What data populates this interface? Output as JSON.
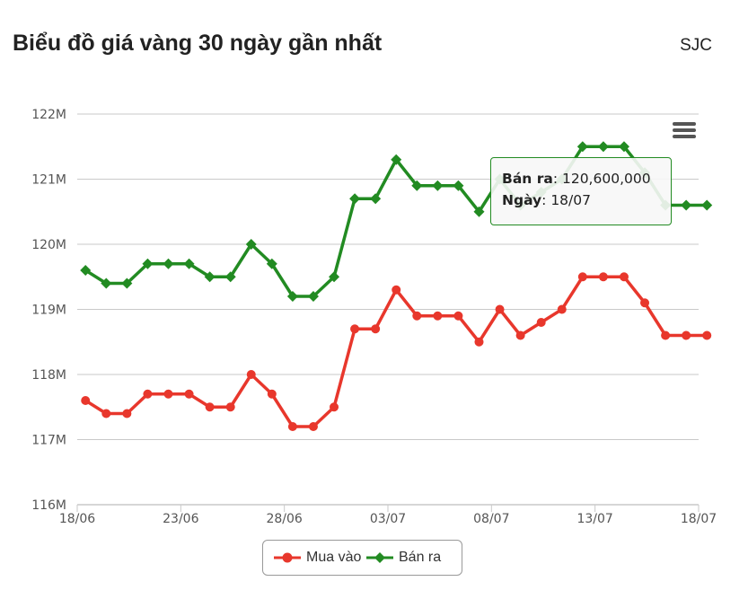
{
  "header": {
    "title": "Biểu đồ giá vàng 30 ngày gần nhất",
    "brand": "SJC"
  },
  "colors": {
    "mua_vao": "#e8372c",
    "ban_ra": "#228b22",
    "grid": "#c9c9c9",
    "axis_text": "#555555"
  },
  "icons": {
    "menu": "hamburger-menu-icon"
  },
  "chart_data": {
    "type": "line",
    "title": "Biểu đồ giá vàng 30 ngày gần nhất",
    "xlabel": "",
    "ylabel": "",
    "ylim": [
      116,
      122
    ],
    "y_ticks": [
      {
        "value": 116,
        "label": "116M"
      },
      {
        "value": 117,
        "label": "117M"
      },
      {
        "value": 118,
        "label": "118M"
      },
      {
        "value": 119,
        "label": "119M"
      },
      {
        "value": 120,
        "label": "120M"
      },
      {
        "value": 121,
        "label": "121M"
      },
      {
        "value": 122,
        "label": "122M"
      }
    ],
    "x_ticks": [
      {
        "value": 0,
        "label": "18/06"
      },
      {
        "value": 5,
        "label": "23/06"
      },
      {
        "value": 10,
        "label": "28/06"
      },
      {
        "value": 15,
        "label": "03/07"
      },
      {
        "value": 20,
        "label": "08/07"
      },
      {
        "value": 25,
        "label": "13/07"
      },
      {
        "value": 30,
        "label": "18/07"
      }
    ],
    "xlim": [
      0,
      30
    ],
    "x": [
      0.4,
      1.4,
      2.4,
      3.4,
      4.4,
      5.4,
      6.4,
      7.4,
      8.4,
      9.4,
      10.4,
      11.4,
      12.4,
      13.4,
      14.4,
      15.4,
      16.4,
      17.4,
      18.4,
      19.4,
      20.4,
      21.4,
      22.4,
      23.4,
      24.4,
      25.4,
      26.4,
      27.4,
      28.4,
      29.4,
      30.4
    ],
    "series": [
      {
        "name": "Mua vào",
        "values": [
          117.6,
          117.4,
          117.4,
          117.7,
          117.7,
          117.7,
          117.5,
          117.5,
          118.0,
          117.7,
          117.2,
          117.2,
          117.5,
          118.7,
          118.7,
          119.3,
          118.9,
          118.9,
          118.9,
          118.5,
          119.0,
          118.6,
          118.8,
          119.0,
          119.5,
          119.5,
          119.5,
          119.1,
          118.6,
          118.6,
          118.6
        ]
      },
      {
        "name": "Bán ra",
        "values": [
          119.6,
          119.4,
          119.4,
          119.7,
          119.7,
          119.7,
          119.5,
          119.5,
          120.0,
          119.7,
          119.2,
          119.2,
          119.5,
          120.7,
          120.7,
          121.3,
          120.9,
          120.9,
          120.9,
          120.5,
          121.0,
          120.6,
          120.8,
          121.0,
          121.5,
          121.5,
          121.5,
          121.1,
          120.6,
          120.6,
          120.6
        ]
      }
    ],
    "grid": true,
    "legend_position": "bottom-center",
    "tooltip": {
      "series_label": "Bán ra",
      "value_text": "120,600,000",
      "date_label": "Ngày",
      "date_text": "18/07"
    }
  }
}
